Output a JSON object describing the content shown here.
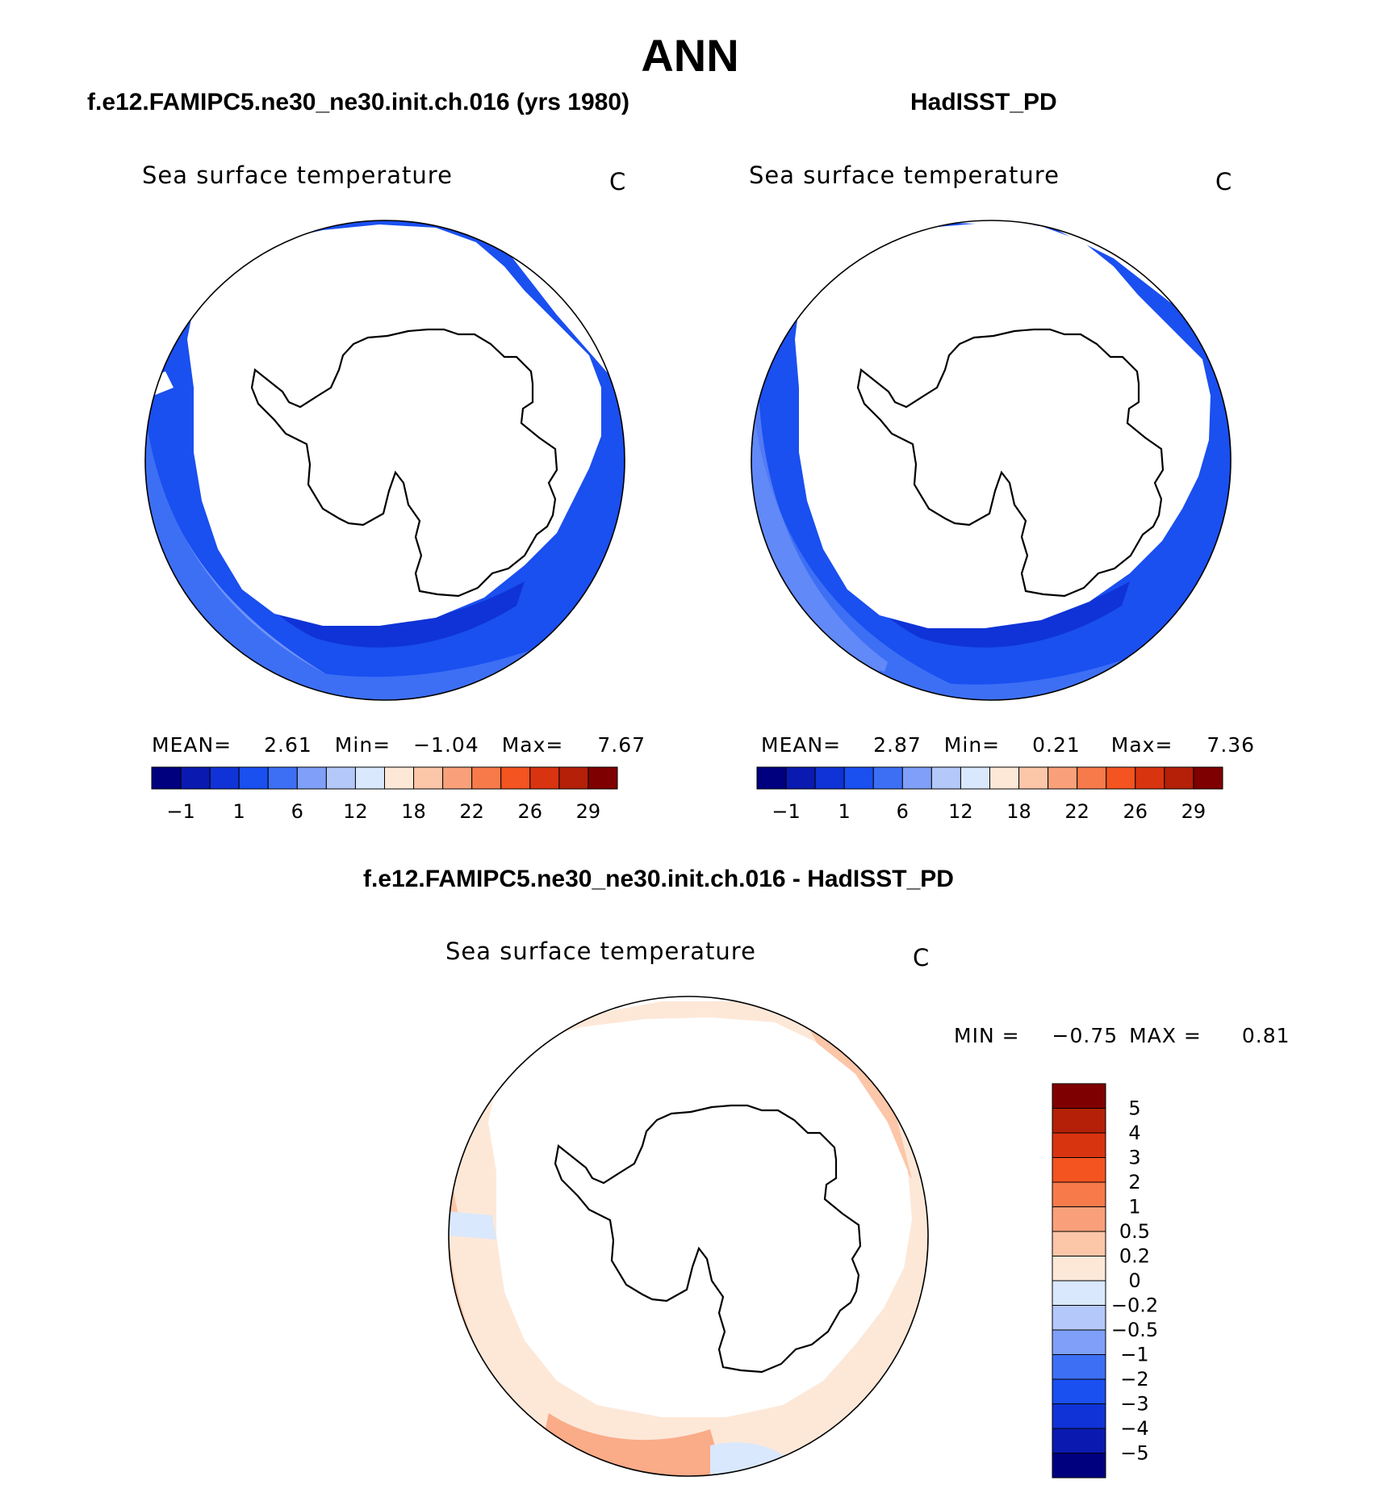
{
  "main_title": "ANN",
  "panels": [
    {
      "title": "f.e12.FAMIPC5.ne30_ne30.init.ch.016 (yrs 1980)",
      "variable": "Sea surface temperature",
      "units": "C",
      "stats": {
        "mean_label": "MEAN=",
        "mean": "2.61",
        "min_label": "Min=",
        "min": "−1.04",
        "max_label": "Max=",
        "max": "7.67"
      }
    },
    {
      "title": "HadISST_PD",
      "variable": "Sea surface temperature",
      "units": "C",
      "stats": {
        "mean_label": "MEAN=",
        "mean": "2.87",
        "min_label": "Min=",
        "min": "0.21",
        "max_label": "Max=",
        "max": "7.36"
      }
    },
    {
      "title": "f.e12.FAMIPC5.ne30_ne30.init.ch.016 - HadISST_PD",
      "variable": "Sea surface temperature",
      "units": "C",
      "stats": {
        "min_label": "MIN =",
        "min": "−0.75",
        "max_label": "MAX =",
        "max": "0.81"
      }
    }
  ],
  "sst_colorbar": {
    "colors": [
      "#00007f",
      "#0a1ab0",
      "#0f33d6",
      "#1a4ff0",
      "#3d6ff5",
      "#7f9ff8",
      "#b4c8fa",
      "#d9e8fc",
      "#fde8d8",
      "#fcc6a8",
      "#f9a07a",
      "#f77a4a",
      "#f4541f",
      "#d93410",
      "#b42008",
      "#7f0000"
    ],
    "tick_labels": [
      "−1",
      "1",
      "6",
      "12",
      "18",
      "22",
      "26",
      "29"
    ]
  },
  "diff_colorbar": {
    "colors": [
      "#7f0000",
      "#b42008",
      "#d93410",
      "#f4541f",
      "#f77a4a",
      "#f9a07a",
      "#fcc6a8",
      "#fde8d8",
      "#d9e8fc",
      "#b4c8fa",
      "#7f9ff8",
      "#3d6ff5",
      "#1a4ff0",
      "#0f33d6",
      "#0a1ab0",
      "#00007f"
    ],
    "tick_labels": [
      "5",
      "4",
      "3",
      "2",
      "1",
      "0.5",
      "0.2",
      "0",
      "−0.2",
      "−0.5",
      "−1",
      "−2",
      "−3",
      "−4",
      "−5"
    ]
  }
}
